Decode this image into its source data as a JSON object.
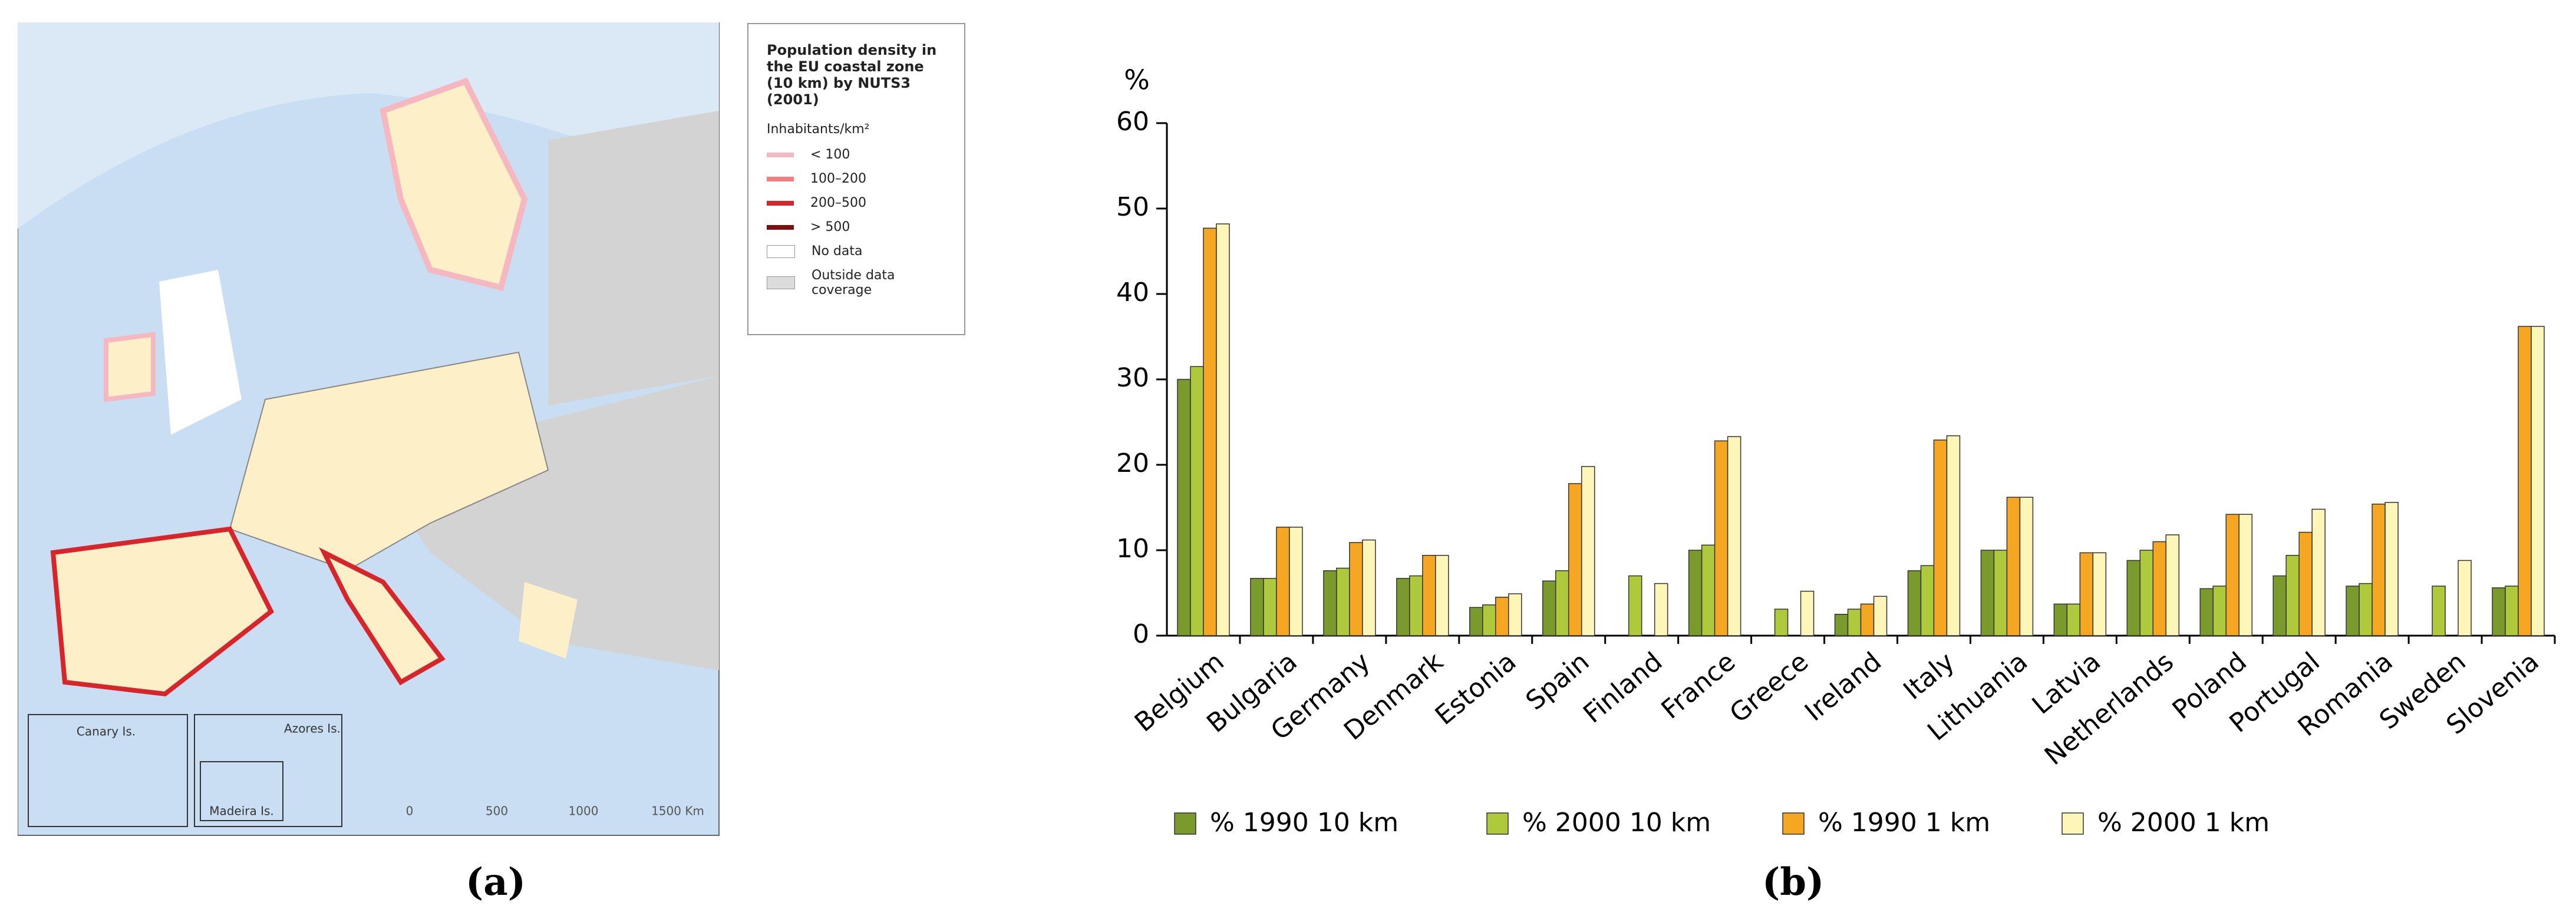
{
  "map": {
    "legend_title": "Population density in the EU coastal zone (10 km) by NUTS3 (2001)",
    "legend_unit": "Inhabitants/km²",
    "legend_items": [
      {
        "label": "< 100",
        "color": "#f5b8c0"
      },
      {
        "label": "100–200",
        "color": "#ef7f80"
      },
      {
        "label": "200–500",
        "color": "#d7262b"
      },
      {
        "label": "> 500",
        "color": "#7b1010"
      },
      {
        "label": "No data",
        "color": "#ffffff"
      },
      {
        "label": "Outside data coverage",
        "color": "#dcdcdc"
      }
    ],
    "insets": [
      "Canary Is.",
      "Azores Is.",
      "Madeira Is."
    ],
    "scale_labels": [
      "0",
      "500",
      "1000",
      "1500 Km"
    ]
  },
  "captions": [
    "(a)",
    "(b)"
  ],
  "chart_data": {
    "type": "bar",
    "y_label": "%",
    "categories": [
      "Belgium",
      "Bulgaria",
      "Germany",
      "Denmark",
      "Estonia",
      "Spain",
      "Finland",
      "France",
      "Greece",
      "Ireland",
      "Italy",
      "Lithuania",
      "Latvia",
      "Netherlands",
      "Poland",
      "Portugal",
      "Romania",
      "Sweden",
      "Slovenia"
    ],
    "series": [
      {
        "name": "% 1990 10 km",
        "color": "#7a9a2e",
        "values": [
          30,
          6.7,
          7.6,
          6.7,
          3.3,
          6.4,
          null,
          10.0,
          null,
          2.5,
          7.6,
          10.0,
          3.7,
          8.8,
          5.5,
          7.0,
          5.8,
          null,
          5.6
        ]
      },
      {
        "name": "% 2000 10 km",
        "color": "#aec93c",
        "values": [
          31.5,
          6.7,
          7.9,
          7.0,
          3.6,
          7.6,
          7.0,
          10.6,
          3.1,
          3.1,
          8.2,
          10.0,
          3.7,
          10.0,
          5.8,
          9.4,
          6.1,
          5.8,
          5.8
        ]
      },
      {
        "name": "% 1990 1 km",
        "color": "#f5a623",
        "values": [
          47.7,
          12.7,
          10.9,
          9.4,
          4.5,
          17.8,
          null,
          22.8,
          null,
          3.7,
          22.9,
          16.2,
          9.7,
          11.0,
          14.2,
          12.1,
          15.4,
          null,
          36.2
        ]
      },
      {
        "name": "% 2000 1 km",
        "color": "#fdf6b8",
        "values": [
          48.2,
          12.7,
          11.2,
          9.4,
          4.9,
          19.8,
          6.1,
          23.3,
          5.2,
          4.6,
          23.4,
          16.2,
          9.7,
          11.8,
          14.2,
          14.8,
          15.6,
          8.8,
          36.2
        ]
      }
    ],
    "ylim": [
      0,
      60
    ],
    "yticks": [
      0,
      10,
      20,
      30,
      40,
      50,
      60
    ]
  }
}
